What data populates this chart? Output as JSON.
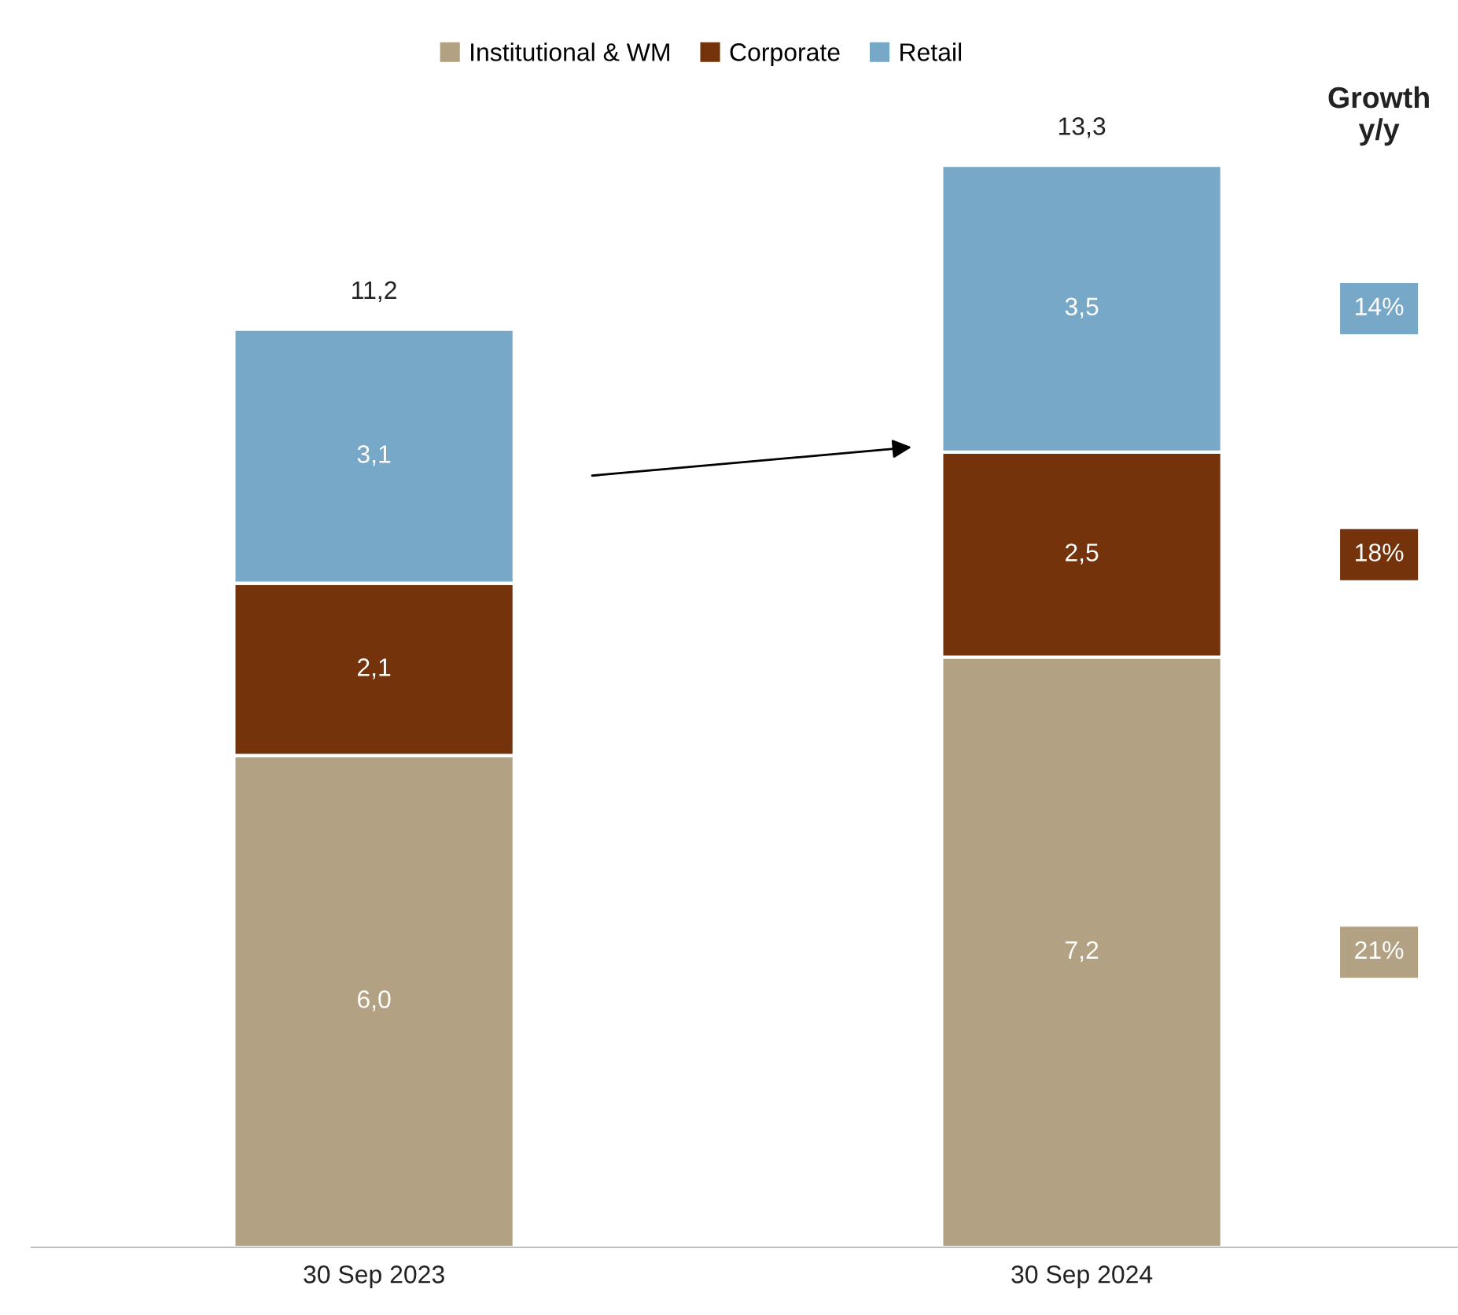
{
  "chart_data": {
    "type": "bar",
    "stacked": true,
    "categories": [
      "30 Sep 2023",
      "30 Sep 2024"
    ],
    "series": [
      {
        "name": "Institutional & WM",
        "color": "#b2a283",
        "values": [
          6.0,
          7.2
        ],
        "value_labels": [
          "6,0",
          "7,2"
        ]
      },
      {
        "name": "Corporate",
        "color": "#74330a",
        "values": [
          2.1,
          2.5
        ],
        "value_labels": [
          "2,1",
          "2,5"
        ]
      },
      {
        "name": "Retail",
        "color": "#78a8c8",
        "values": [
          3.1,
          3.5
        ],
        "value_labels": [
          "3,1",
          "3,5"
        ]
      }
    ],
    "totals": [
      "11,2",
      "13,3"
    ],
    "annotations": [
      "Growth\ny/y",
      "21%",
      "18%",
      "14%"
    ],
    "legend": "top",
    "grid": false,
    "tick_labels": "x"
  }
}
